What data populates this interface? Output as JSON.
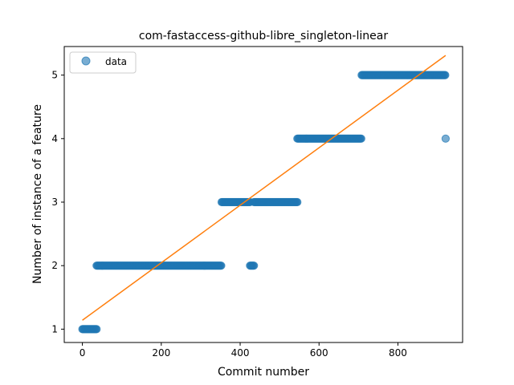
{
  "chart_data": {
    "type": "scatter",
    "title": "com-fastaccess-github-libre_singleton-linear",
    "xlabel": "Commit number",
    "ylabel": "Number of instance of a feature",
    "xlim": [
      -46,
      964
    ],
    "ylim": [
      0.79,
      5.45
    ],
    "xticks": [
      0,
      200,
      400,
      600,
      800
    ],
    "yticks": [
      1,
      2,
      3,
      4,
      5
    ],
    "grid": false,
    "legend": {
      "placement": "top-left",
      "entries": [
        "data"
      ]
    },
    "colors": {
      "points": "#1f77b4",
      "fit": "#ff7f0e"
    },
    "series": [
      {
        "name": "data",
        "kind": "scatter",
        "segments": [
          {
            "x_start": 0,
            "x_end": 36,
            "y": 1
          },
          {
            "x_start": 36,
            "x_end": 353,
            "y": 2
          },
          {
            "x_start": 353,
            "x_end": 425,
            "y": 3
          },
          {
            "x_start": 425,
            "x_end": 435,
            "y": 2
          },
          {
            "x_start": 435,
            "x_end": 545,
            "y": 3
          },
          {
            "x_start": 545,
            "x_end": 708,
            "y": 4
          },
          {
            "x_start": 708,
            "x_end": 920,
            "y": 5
          },
          {
            "x_start": 921,
            "x_end": 921,
            "y": 4
          }
        ]
      },
      {
        "kind": "line",
        "x": [
          0,
          921
        ],
        "y": [
          1.14,
          5.31
        ]
      }
    ]
  }
}
